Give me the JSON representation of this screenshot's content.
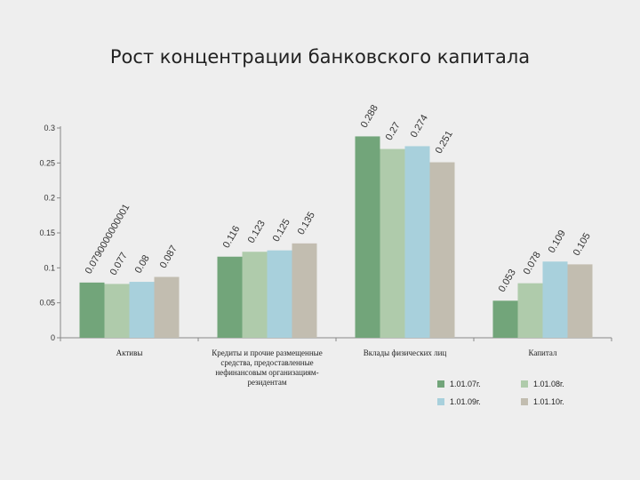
{
  "title": "Рост концентрации банковского капитала",
  "chart_data": {
    "type": "bar",
    "title": "Рост концентрации банковского капитала",
    "categories": [
      [
        "Активы"
      ],
      [
        "Кредиты и прочие размещенные",
        "средства, предоставленные",
        "нефинансовым организациям-",
        "резидентам"
      ],
      [
        "Вклады физических лиц"
      ],
      [
        "Капитал"
      ]
    ],
    "series": [
      {
        "name": "1.01.07г.",
        "color": "#72a57a",
        "values": [
          0.079,
          0.116,
          0.288,
          0.053
        ]
      },
      {
        "name": "1.01.08г.",
        "color": "#afcbab",
        "values": [
          0.077,
          0.123,
          0.27,
          0.078
        ]
      },
      {
        "name": "1.01.09г.",
        "color": "#a8d0dc",
        "values": [
          0.08,
          0.125,
          0.274,
          0.109
        ]
      },
      {
        "name": "1.01.10г.",
        "color": "#c2bdb0",
        "values": [
          0.087,
          0.135,
          0.251,
          0.105
        ]
      }
    ],
    "data_labels": [
      [
        "0.0790000000001",
        "0.077",
        "0.08",
        "0.087"
      ],
      [
        "0.116",
        "0.123",
        "0.125",
        "0.135"
      ],
      [
        "0.288",
        "0.27",
        "0.274",
        "0.251"
      ],
      [
        "0.053",
        "0.078",
        "0.109",
        "0.105"
      ]
    ],
    "yticks": [
      "0",
      "0.05",
      "0.1",
      "0.15",
      "0.2",
      "0.25",
      "0.3"
    ],
    "ylim": [
      0,
      0.3
    ],
    "grid": false,
    "legend_position": "bottom-right"
  }
}
